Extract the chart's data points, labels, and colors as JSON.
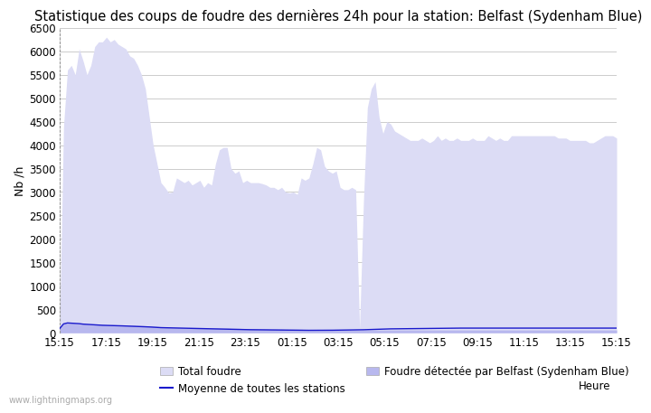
{
  "title": "Statistique des coups de foudre des dernières 24h pour la station: Belfast (Sydenham Blue)",
  "ylabel": "Nb /h",
  "watermark": "www.lightningmaps.org",
  "xtick_labels": [
    "15:15",
    "17:15",
    "19:15",
    "21:15",
    "23:15",
    "01:15",
    "03:15",
    "05:15",
    "07:15",
    "09:15",
    "11:15",
    "13:15",
    "15:15"
  ],
  "ytick_values": [
    0,
    500,
    1000,
    1500,
    2000,
    2500,
    3000,
    3500,
    4000,
    4500,
    5000,
    5500,
    6000,
    6500
  ],
  "ylim": [
    0,
    6500
  ],
  "legend_labels": [
    "Total foudre",
    "Moyenne de toutes les stations",
    "Foudre détectée par Belfast (Sydenham Blue)"
  ],
  "fill_total_color": "#dcdcf5",
  "fill_belfast_color": "#b8b8ee",
  "line_moyenne_color": "#1a1acc",
  "bg_color": "#ffffff",
  "grid_color": "#cccccc",
  "title_fontsize": 10.5,
  "axis_fontsize": 9,
  "tick_fontsize": 8.5,
  "total_foudre": [
    150,
    4400,
    5600,
    5700,
    5500,
    6050,
    5800,
    5500,
    5700,
    6100,
    6200,
    6200,
    6300,
    6200,
    6250,
    6150,
    6100,
    6050,
    5900,
    5850,
    5700,
    5500,
    5200,
    4600,
    4000,
    3600,
    3200,
    3100,
    2980,
    3000,
    3300,
    3250,
    3200,
    3250,
    3150,
    3200,
    3250,
    3100,
    3200,
    3150,
    3600,
    3900,
    3950,
    3950,
    3500,
    3400,
    3450,
    3200,
    3250,
    3200,
    3200,
    3200,
    3180,
    3150,
    3100,
    3100,
    3050,
    3100,
    3000,
    2980,
    3000,
    2950,
    3300,
    3250,
    3300,
    3600,
    3950,
    3900,
    3550,
    3450,
    3400,
    3450,
    3100,
    3050,
    3050,
    3100,
    3050,
    100,
    2800,
    4800,
    5200,
    5350,
    4600,
    4250,
    4500,
    4450,
    4300,
    4250,
    4200,
    4150,
    4100,
    4100,
    4100,
    4150,
    4100,
    4050,
    4100,
    4200,
    4100,
    4150,
    4100,
    4100,
    4150,
    4100,
    4100,
    4100,
    4150,
    4100,
    4100,
    4100,
    4200,
    4150,
    4100,
    4150,
    4100,
    4100,
    4200,
    4200,
    4200,
    4200,
    4200,
    4200,
    4200,
    4200,
    4200,
    4200,
    4200,
    4200,
    4150,
    4150,
    4150,
    4100,
    4100,
    4100,
    4100,
    4100,
    4050,
    4050,
    4100,
    4150,
    4200,
    4200,
    4200,
    4150
  ],
  "belfast_foudre": [
    100,
    200,
    220,
    210,
    205,
    200,
    190,
    185,
    180,
    175,
    175,
    175,
    170,
    170,
    170,
    165,
    165,
    165,
    160,
    160,
    155,
    155,
    150,
    145,
    140,
    135,
    130,
    125,
    120,
    115,
    115,
    110,
    110,
    110,
    105,
    105,
    105,
    100,
    100,
    100,
    100,
    100,
    100,
    100,
    95,
    95,
    95,
    90,
    90,
    90,
    90,
    85,
    85,
    85,
    80,
    80,
    80,
    80,
    75,
    75,
    75,
    75,
    75,
    70,
    70,
    70,
    70,
    70,
    70,
    70,
    65,
    65,
    65,
    65,
    65,
    60,
    60,
    60,
    60,
    60,
    60,
    60,
    60,
    60,
    60,
    60,
    60,
    60,
    60,
    60,
    60,
    60,
    60,
    60,
    60,
    60,
    60,
    60,
    60,
    60,
    60,
    60,
    60,
    60,
    60,
    60,
    60,
    60,
    60,
    60,
    60,
    60,
    60,
    60,
    60,
    60,
    60,
    60,
    60,
    60,
    60,
    60,
    60,
    60,
    60,
    60,
    60,
    60,
    60,
    60,
    60,
    60,
    60,
    60,
    60,
    60,
    60,
    60,
    60,
    60,
    60,
    60,
    60,
    60
  ],
  "moyenne_stations": [
    90,
    190,
    210,
    205,
    200,
    195,
    185,
    180,
    175,
    170,
    165,
    160,
    158,
    155,
    152,
    150,
    148,
    145,
    142,
    140,
    138,
    135,
    130,
    125,
    120,
    115,
    110,
    108,
    105,
    103,
    100,
    98,
    96,
    94,
    92,
    90,
    88,
    86,
    84,
    82,
    80,
    78,
    76,
    75,
    73,
    72,
    70,
    68,
    67,
    66,
    65,
    64,
    63,
    62,
    61,
    60,
    59,
    58,
    57,
    56,
    55,
    55,
    54,
    54,
    53,
    53,
    53,
    53,
    54,
    55,
    55,
    56,
    57,
    58,
    60,
    61,
    62,
    63,
    65,
    68,
    72,
    75,
    78,
    80,
    82,
    84,
    85,
    86,
    87,
    88,
    89,
    90,
    91,
    92,
    93,
    94,
    95,
    96,
    97,
    97,
    98,
    99,
    100,
    100,
    100,
    100,
    100,
    100,
    100,
    100,
    100,
    100,
    100,
    100,
    100,
    100,
    100,
    100,
    100,
    100,
    100,
    100,
    100,
    100,
    100,
    100,
    100,
    100,
    100,
    100,
    100,
    100,
    100,
    100,
    100,
    100,
    100,
    100,
    100,
    100,
    100,
    100,
    100,
    100
  ]
}
